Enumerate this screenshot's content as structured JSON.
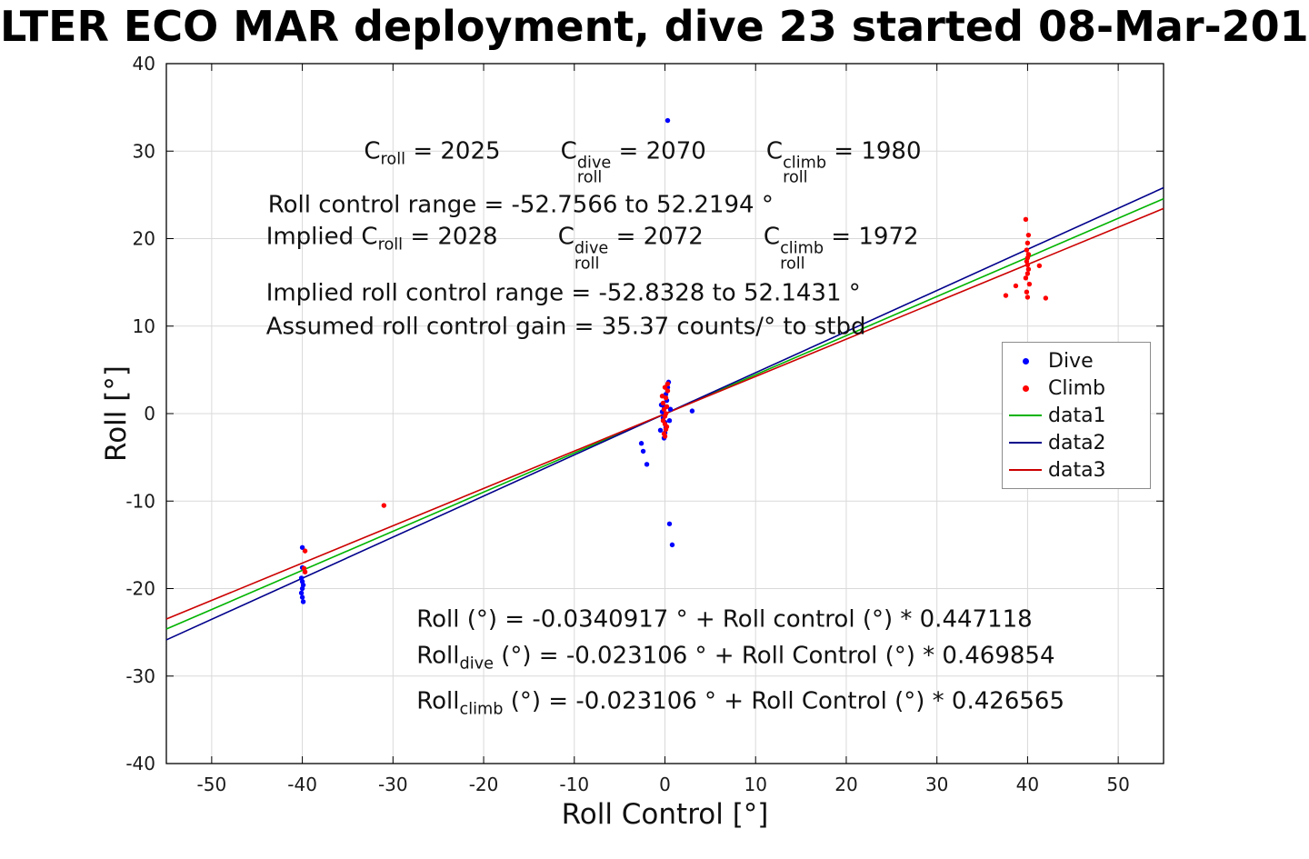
{
  "title": "LTER ECO MAR deployment, dive 23 started 08-Mar-201",
  "chart_data": {
    "type": "scatter",
    "title": "LTER ECO MAR deployment, dive 23 started 08-Mar-201",
    "xlabel": "Roll Control [°]",
    "ylabel": "Roll [°]",
    "xlim": [
      -55,
      55
    ],
    "ylim": [
      -40,
      40
    ],
    "xticks": [
      -50,
      -40,
      -30,
      -20,
      -10,
      0,
      10,
      20,
      30,
      40,
      50
    ],
    "yticks": [
      -40,
      -30,
      -20,
      -10,
      0,
      10,
      20,
      30,
      40
    ],
    "grid": true,
    "legend_position": "right",
    "colors": {
      "grid": "#d9d9d9",
      "axis": "#000000",
      "dive": "#0000ff",
      "climb": "#ff0000",
      "data1": "#00b300",
      "data2": "#00008b",
      "data3": "#cc0000"
    },
    "series": [
      {
        "name": "Dive",
        "type": "scatter",
        "color": "#0000ff",
        "points": [
          [
            -40.0,
            -17.6
          ],
          [
            -40.1,
            -18.8
          ],
          [
            -40.0,
            -19.2
          ],
          [
            -39.9,
            -19.6
          ],
          [
            -40.0,
            -20.0
          ],
          [
            -40.1,
            -20.5
          ],
          [
            -40.0,
            -21.0
          ],
          [
            -39.9,
            -21.5
          ],
          [
            -40.0,
            -15.3
          ],
          [
            0.3,
            33.5
          ],
          [
            -2.6,
            -3.4
          ],
          [
            -2.4,
            -4.3
          ],
          [
            -2.0,
            -5.8
          ],
          [
            -0.4,
            1.0
          ],
          [
            -0.3,
            0.2
          ],
          [
            -0.2,
            -0.5
          ],
          [
            -0.1,
            0.8
          ],
          [
            0.0,
            0.0
          ],
          [
            0.0,
            -1.0
          ],
          [
            0.1,
            -1.6
          ],
          [
            0.0,
            -2.2
          ],
          [
            -0.1,
            -2.8
          ],
          [
            0.2,
            1.5
          ],
          [
            0.1,
            2.2
          ],
          [
            0.3,
            3.0
          ],
          [
            0.4,
            3.6
          ],
          [
            0.5,
            -0.8
          ],
          [
            0.6,
            0.5
          ],
          [
            -0.5,
            -1.9
          ],
          [
            0.5,
            -12.6
          ],
          [
            0.8,
            -15.0
          ],
          [
            3.0,
            0.3
          ]
        ]
      },
      {
        "name": "Climb",
        "type": "scatter",
        "color": "#ff0000",
        "points": [
          [
            -39.7,
            -15.7
          ],
          [
            -39.8,
            -17.7
          ],
          [
            -39.7,
            -18.1
          ],
          [
            -31.0,
            -10.5
          ],
          [
            -0.3,
            2.0
          ],
          [
            -0.2,
            1.2
          ],
          [
            -0.1,
            0.5
          ],
          [
            0.0,
            -0.3
          ],
          [
            0.0,
            -1.2
          ],
          [
            0.1,
            -1.8
          ],
          [
            -0.1,
            -2.3
          ],
          [
            0.2,
            0.8
          ],
          [
            0.1,
            1.8
          ],
          [
            0.0,
            3.0
          ],
          [
            -0.2,
            -0.8
          ],
          [
            0.3,
            2.6
          ],
          [
            0.2,
            -1.5
          ],
          [
            0.1,
            0.0
          ],
          [
            0.0,
            -2.6
          ],
          [
            0.3,
            3.4
          ],
          [
            39.8,
            22.2
          ],
          [
            40.1,
            20.4
          ],
          [
            40.0,
            19.5
          ],
          [
            39.9,
            18.7
          ],
          [
            40.1,
            18.2
          ],
          [
            40.0,
            17.8
          ],
          [
            39.9,
            17.4
          ],
          [
            40.0,
            17.0
          ],
          [
            40.1,
            16.5
          ],
          [
            40.0,
            16.0
          ],
          [
            39.8,
            15.5
          ],
          [
            40.2,
            14.8
          ],
          [
            39.9,
            13.9
          ],
          [
            40.0,
            13.3
          ],
          [
            37.6,
            13.5
          ],
          [
            41.3,
            16.9
          ],
          [
            38.7,
            14.6
          ],
          [
            42.0,
            13.2
          ]
        ]
      },
      {
        "name": "data1",
        "type": "line",
        "color": "#00b300",
        "intercept": -0.0340917,
        "slope": 0.447118
      },
      {
        "name": "data2",
        "type": "line",
        "color": "#00008b",
        "intercept": -0.023106,
        "slope": 0.469854
      },
      {
        "name": "data3",
        "type": "line",
        "color": "#cc0000",
        "intercept": -0.023106,
        "slope": 0.426565
      }
    ],
    "annotations": [
      {
        "x": -33.2,
        "y": 28.8,
        "segments": [
          {
            "t": "C"
          },
          {
            "sub": "roll"
          },
          {
            "t": " = 2025        "
          },
          {
            "t": "C"
          },
          {
            "sup": "dive",
            "sub": "roll"
          },
          {
            "t": " = 2070        "
          },
          {
            "t": "C"
          },
          {
            "sup": "climb",
            "sub": "roll"
          },
          {
            "t": " = 1980"
          }
        ]
      },
      {
        "x": -43.8,
        "y": 23.8,
        "segments": [
          {
            "t": "Roll control range = -52.7566 to 52.2194 °"
          }
        ]
      },
      {
        "x": -44.0,
        "y": 19.0,
        "segments": [
          {
            "t": "Implied C"
          },
          {
            "sub": "roll"
          },
          {
            "t": " = 2028        "
          },
          {
            "t": "C"
          },
          {
            "sup": "dive",
            "sub": "roll"
          },
          {
            "t": " = 2072        "
          },
          {
            "t": "C"
          },
          {
            "sup": "climb",
            "sub": "roll"
          },
          {
            "t": " = 1972"
          }
        ]
      },
      {
        "x": -44.0,
        "y": 13.7,
        "segments": [
          {
            "t": "Implied roll control range = -52.8328 to 52.1431 °"
          }
        ]
      },
      {
        "x": -44.0,
        "y": 9.9,
        "segments": [
          {
            "t": "Assumed roll control gain = 35.37 counts/° to stbd"
          }
        ]
      },
      {
        "x": -27.4,
        "y": -23.6,
        "segments": [
          {
            "t": "Roll (°) = -0.0340917 ° + Roll control (°) * 0.447118"
          }
        ]
      },
      {
        "x": -27.4,
        "y": -27.7,
        "segments": [
          {
            "t": "Roll"
          },
          {
            "sub": "dive"
          },
          {
            "t": " (°) = -0.023106 ° + Roll Control (°) * 0.469854"
          }
        ]
      },
      {
        "x": -27.4,
        "y": -32.9,
        "segments": [
          {
            "t": "Roll"
          },
          {
            "sub": "climb"
          },
          {
            "t": " (°) = -0.023106 ° + Roll Control (°) * 0.426565"
          }
        ]
      }
    ]
  }
}
